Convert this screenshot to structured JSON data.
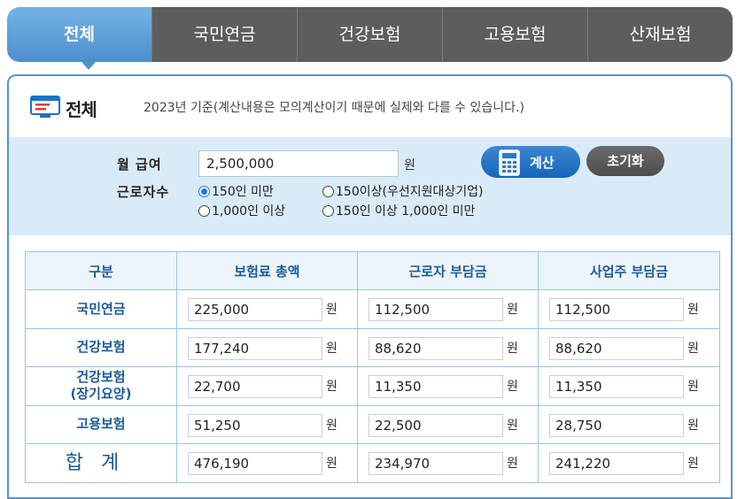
{
  "tabs": [
    {
      "label": "전체",
      "active": true
    },
    {
      "label": "국민연금",
      "active": false
    },
    {
      "label": "건강보험",
      "active": false
    },
    {
      "label": "고용보험",
      "active": false
    },
    {
      "label": "산재보험",
      "active": false
    }
  ],
  "panel": {
    "title": "전체",
    "note": "2023년 기준(계산내용은 모의계산이기 때문에 실제와 다를 수 있습니다.)"
  },
  "form": {
    "salary_label": "월 급여",
    "salary_value": "2,500,000",
    "unit": "원",
    "workers_label": "근로자수",
    "options": [
      {
        "label": "150인 미만",
        "checked": true
      },
      {
        "label": "150이상(우선지원대상기업)",
        "checked": false
      },
      {
        "label": "1,000인 이상",
        "checked": false
      },
      {
        "label": "150인 이상 1,000인 미만",
        "checked": false
      }
    ],
    "calc_label": "계산",
    "reset_label": "초기화"
  },
  "table": {
    "headers": [
      "구분",
      "보험료 총액",
      "근로자 부담금",
      "사업주 부담금"
    ],
    "rows": [
      {
        "label": "국민연금",
        "label2": "",
        "total": "225,000",
        "worker": "112,500",
        "employer": "112,500"
      },
      {
        "label": "건강보험",
        "label2": "",
        "total": "177,240",
        "worker": "88,620",
        "employer": "88,620"
      },
      {
        "label": "건강보험",
        "label2": "(장기요양)",
        "total": "22,700",
        "worker": "11,350",
        "employer": "11,350"
      },
      {
        "label": "고용보험",
        "label2": "",
        "total": "51,250",
        "worker": "22,500",
        "employer": "28,750"
      },
      {
        "label": "합계",
        "label2": "",
        "total": "476,190",
        "worker": "234,970",
        "employer": "241,220"
      }
    ]
  },
  "colors": {
    "active_tab": "#5092ce",
    "inactive_tab": "#5d5d5d",
    "input_band": "#daebf8",
    "header_text": "#1c5a96",
    "calc_button": "#1566b8"
  }
}
